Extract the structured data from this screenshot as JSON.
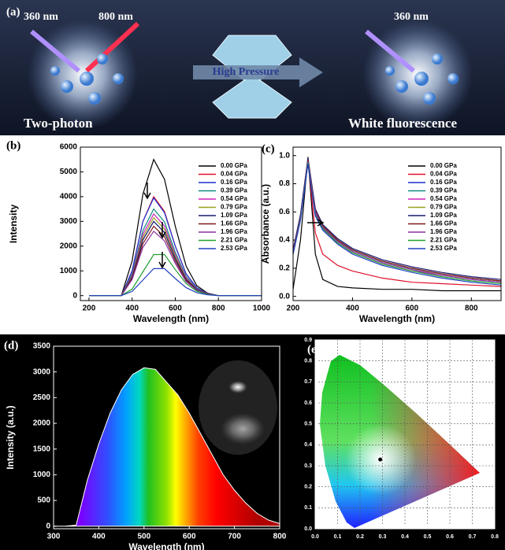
{
  "illustration": {
    "label": "(a)",
    "left_wavelengths": [
      "360 nm",
      "800 nm"
    ],
    "center": "High Pressure",
    "left_caption": "Two-photon",
    "right_wavelength": "360 nm",
    "right_caption": "White fluorescence"
  },
  "chart_data": [
    {
      "type": "line",
      "label": "(b)",
      "x_label": "Wavelength (nm)",
      "y_label": "Intensity",
      "legend": "upper right",
      "x": [
        200,
        250,
        300,
        350,
        400,
        450,
        500,
        550,
        600,
        650,
        700,
        750,
        800,
        850,
        900,
        950,
        1000
      ],
      "xlim": [
        160,
        1000
      ],
      "xticks": [
        200,
        400,
        600,
        800,
        1000
      ],
      "ylim": [
        -200,
        6000
      ],
      "yticks": [
        0,
        1000,
        2000,
        3000,
        4000,
        5000,
        6000
      ],
      "series": [
        {
          "name": "0.00 GPa",
          "color": "#000000",
          "values": [
            0,
            0,
            0,
            0,
            1400,
            4100,
            5500,
            4700,
            2800,
            1200,
            400,
            100,
            0,
            0,
            0,
            0,
            0
          ]
        },
        {
          "name": "0.04 GPa",
          "color": "#e0102a",
          "values": [
            0,
            0,
            0,
            0,
            1000,
            3000,
            4000,
            3400,
            2000,
            880,
            320,
            80,
            0,
            0,
            0,
            0,
            0
          ]
        },
        {
          "name": "0.16 GPa",
          "color": "#1a2fd0",
          "values": [
            0,
            0,
            0,
            0,
            1000,
            3000,
            3950,
            3350,
            2000,
            870,
            320,
            80,
            0,
            0,
            0,
            0,
            0
          ]
        },
        {
          "name": "0.39 GPa",
          "color": "#108a80",
          "values": [
            0,
            0,
            0,
            0,
            880,
            2630,
            3500,
            2980,
            1750,
            770,
            280,
            70,
            0,
            0,
            0,
            0,
            0
          ]
        },
        {
          "name": "0.54 GPa",
          "color": "#d020c0",
          "values": [
            0,
            0,
            0,
            0,
            830,
            2480,
            3300,
            2810,
            1650,
            730,
            260,
            70,
            0,
            0,
            0,
            0,
            0
          ]
        },
        {
          "name": "0.79 GPa",
          "color": "#9aa020",
          "values": [
            0,
            0,
            0,
            0,
            790,
            2360,
            3150,
            2680,
            1580,
            690,
            250,
            60,
            0,
            0,
            0,
            0,
            0
          ]
        },
        {
          "name": "1.09 GPa",
          "color": "#1a1a70",
          "values": [
            0,
            0,
            0,
            0,
            750,
            2250,
            3000,
            2550,
            1500,
            660,
            240,
            60,
            0,
            0,
            0,
            0,
            0
          ]
        },
        {
          "name": "1.66 GPa",
          "color": "#7a1a1a",
          "values": [
            0,
            0,
            0,
            0,
            700,
            2100,
            2800,
            2380,
            1400,
            620,
            220,
            60,
            0,
            0,
            0,
            0,
            0
          ]
        },
        {
          "name": "1.96 GPa",
          "color": "#8a30a0",
          "values": [
            0,
            0,
            0,
            0,
            650,
            1950,
            2600,
            2210,
            1300,
            570,
            210,
            50,
            0,
            0,
            0,
            0,
            0
          ]
        },
        {
          "name": "2.21 GPa",
          "color": "#20a030",
          "values": [
            0,
            0,
            0,
            0,
            260,
            960,
            1660,
            1660,
            1050,
            490,
            175,
            50,
            0,
            0,
            0,
            0,
            0
          ]
        },
        {
          "name": "2.53 GPa",
          "color": "#2040c0",
          "values": [
            0,
            0,
            0,
            0,
            170,
            630,
            1090,
            1090,
            690,
            320,
            115,
            35,
            0,
            0,
            0,
            0,
            0
          ]
        }
      ]
    },
    {
      "type": "line",
      "label": "(c)",
      "x_label": "Wavelength (nm)",
      "y_label": "Absorbance (a.u.)",
      "legend": "upper right",
      "x": [
        200,
        225,
        250,
        275,
        300,
        350,
        400,
        500,
        600,
        700,
        800,
        900
      ],
      "xlim": [
        200,
        900
      ],
      "xticks": [
        200,
        400,
        600,
        800
      ],
      "ylim": [
        -0.03,
        1.06
      ],
      "yticks": [
        {
          "value": 0,
          "label": "0.0"
        },
        0.2,
        0.4,
        0.6,
        0.8,
        {
          "value": 1,
          "label": "1.0"
        }
      ],
      "series": [
        {
          "name": "0.00 GPa",
          "color": "#000000",
          "values": [
            0.05,
            0.4,
            0.99,
            0.3,
            0.12,
            0.07,
            0.06,
            0.05,
            0.05,
            0.04,
            0.04,
            0.04
          ]
        },
        {
          "name": "0.04 GPa",
          "color": "#e0102a",
          "values": [
            0.3,
            0.55,
            0.97,
            0.45,
            0.3,
            0.22,
            0.18,
            0.13,
            0.1,
            0.09,
            0.08,
            0.07
          ]
        },
        {
          "name": "0.16 GPa",
          "color": "#1a2fd0",
          "values": [
            0.33,
            0.58,
            0.98,
            0.62,
            0.5,
            0.4,
            0.33,
            0.25,
            0.2,
            0.16,
            0.13,
            0.11
          ]
        },
        {
          "name": "0.39 GPa",
          "color": "#108a80",
          "values": [
            0.32,
            0.57,
            0.97,
            0.6,
            0.49,
            0.39,
            0.32,
            0.24,
            0.19,
            0.15,
            0.12,
            0.1
          ]
        },
        {
          "name": "0.54 GPa",
          "color": "#d020c0",
          "values": [
            0.32,
            0.56,
            0.96,
            0.59,
            0.48,
            0.38,
            0.31,
            0.23,
            0.18,
            0.15,
            0.12,
            0.1
          ]
        },
        {
          "name": "0.79 GPa",
          "color": "#9aa020",
          "values": [
            0.31,
            0.56,
            0.96,
            0.6,
            0.5,
            0.4,
            0.33,
            0.25,
            0.2,
            0.16,
            0.13,
            0.11
          ]
        },
        {
          "name": "1.09 GPa",
          "color": "#1a1a70",
          "values": [
            0.33,
            0.58,
            0.98,
            0.62,
            0.51,
            0.41,
            0.34,
            0.26,
            0.21,
            0.17,
            0.14,
            0.12
          ]
        },
        {
          "name": "1.66 GPa",
          "color": "#7a1a1a",
          "values": [
            0.32,
            0.57,
            0.97,
            0.61,
            0.5,
            0.4,
            0.33,
            0.25,
            0.2,
            0.16,
            0.13,
            0.11
          ]
        },
        {
          "name": "1.96 GPa",
          "color": "#8a30a0",
          "values": [
            0.31,
            0.56,
            0.96,
            0.6,
            0.49,
            0.39,
            0.32,
            0.24,
            0.19,
            0.15,
            0.12,
            0.1
          ]
        },
        {
          "name": "2.21 GPa",
          "color": "#20a030",
          "values": [
            0.3,
            0.55,
            0.95,
            0.58,
            0.48,
            0.38,
            0.31,
            0.23,
            0.18,
            0.14,
            0.11,
            0.09
          ]
        },
        {
          "name": "2.53 GPa",
          "color": "#2040c0",
          "values": [
            0.3,
            0.54,
            0.94,
            0.57,
            0.47,
            0.37,
            0.3,
            0.22,
            0.17,
            0.13,
            0.1,
            0.08
          ]
        }
      ]
    },
    {
      "type": "area",
      "label": "(d)",
      "x_label": "Wavelength (nm)",
      "y_label": "Intensity (a.u.)",
      "x": [
        300,
        325,
        350,
        375,
        400,
        425,
        450,
        475,
        500,
        525,
        550,
        575,
        600,
        625,
        650,
        675,
        700,
        725,
        750,
        775,
        800
      ],
      "values": [
        0,
        0,
        20,
        900,
        1600,
        2200,
        2650,
        2950,
        3080,
        3050,
        2800,
        2550,
        2200,
        1800,
        1400,
        1000,
        700,
        450,
        250,
        120,
        50
      ],
      "xlim": [
        300,
        800
      ],
      "xticks": [
        300,
        400,
        500,
        600,
        700,
        800
      ],
      "ylim": [
        -50,
        3500
      ],
      "yticks": [
        0,
        500,
        1000,
        1500,
        2000,
        2500,
        3000,
        3500
      ]
    },
    {
      "type": "scatter",
      "label": "(e)",
      "grid": true,
      "color": "#000000",
      "x": [
        0.29
      ],
      "values": [
        0.33
      ],
      "xlim": [
        0,
        0.8
      ],
      "xticks": [
        {
          "value": 0,
          "label": "0.0"
        },
        0.1,
        0.2,
        0.3,
        0.4,
        0.5,
        0.6,
        0.7,
        0.8
      ],
      "ylim": [
        0,
        0.9
      ],
      "yticks": [
        {
          "value": 0,
          "label": "0.0"
        },
        0.1,
        0.2,
        0.3,
        0.4,
        0.5,
        0.6,
        0.7,
        0.8,
        0.9
      ]
    }
  ]
}
